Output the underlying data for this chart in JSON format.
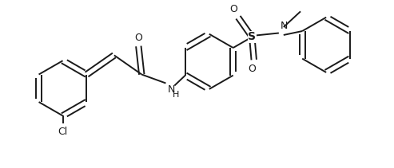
{
  "bg_color": "#ffffff",
  "line_color": "#1a1a1a",
  "line_width": 1.4,
  "font_size": 9,
  "fig_width": 4.93,
  "fig_height": 2.11,
  "dpi": 100,
  "xlim": [
    0,
    9.8
  ],
  "ylim": [
    0,
    4.2
  ]
}
